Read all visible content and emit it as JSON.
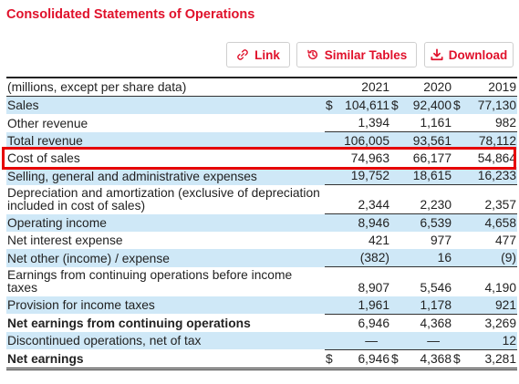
{
  "title": "Consolidated Statements of Operations",
  "toolbar": {
    "link_label": "Link",
    "similar_label": "Similar Tables",
    "download_label": "Download"
  },
  "colors": {
    "accent": "#e0112b",
    "row_shade": "#cfe8f7",
    "highlight": "#e60000"
  },
  "table": {
    "header_label": "(millions, except per share data)",
    "years": [
      "2021",
      "2020",
      "2019"
    ],
    "rows": [
      {
        "label": "Sales",
        "v2021": "104,611",
        "v2020": "92,400",
        "v2019": "77,130",
        "cur": "$"
      },
      {
        "label": "Other revenue",
        "v2021": "1,394",
        "v2020": "1,161",
        "v2019": "982"
      },
      {
        "label": "Total revenue",
        "v2021": "106,005",
        "v2020": "93,561",
        "v2019": "78,112"
      },
      {
        "label": "Cost of sales",
        "v2021": "74,963",
        "v2020": "66,177",
        "v2019": "54,864"
      },
      {
        "label": "Selling, general and administrative expenses",
        "v2021": "19,752",
        "v2020": "18,615",
        "v2019": "16,233"
      },
      {
        "label": "Depreciation and amortization (exclusive of depreciation included in cost of sales)",
        "v2021": "2,344",
        "v2020": "2,230",
        "v2019": "2,357"
      },
      {
        "label": "Operating income",
        "v2021": "8,946",
        "v2020": "6,539",
        "v2019": "4,658"
      },
      {
        "label": "Net interest expense",
        "v2021": "421",
        "v2020": "977",
        "v2019": "477"
      },
      {
        "label": "Net other (income) / expense",
        "v2021": "(382)",
        "v2020": "16",
        "v2019": "(9)"
      },
      {
        "label": "Earnings from continuing operations before income taxes",
        "v2021": "8,907",
        "v2020": "5,546",
        "v2019": "4,190"
      },
      {
        "label": "Provision for income taxes",
        "v2021": "1,961",
        "v2020": "1,178",
        "v2019": "921"
      },
      {
        "label": "Net earnings from continuing operations",
        "v2021": "6,946",
        "v2020": "4,368",
        "v2019": "3,269"
      },
      {
        "label": "Discontinued operations, net of tax",
        "v2021": "—",
        "v2020": "—",
        "v2019": "12"
      },
      {
        "label": "Net earnings",
        "v2021": "6,946",
        "v2020": "4,368",
        "v2019": "3,281",
        "cur": "$"
      }
    ]
  }
}
